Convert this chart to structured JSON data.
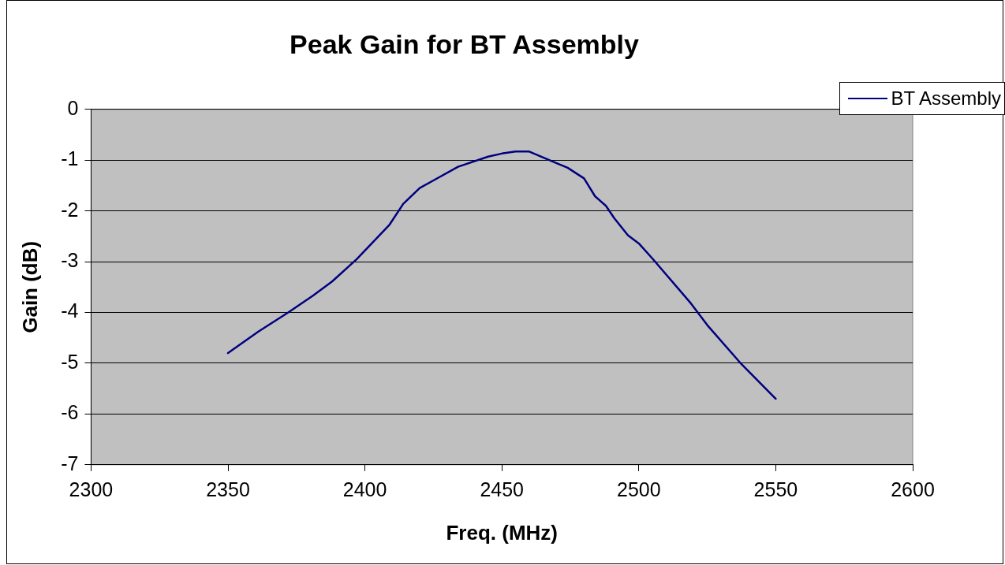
{
  "chart_data": {
    "type": "line",
    "title": "Peak Gain for BT Assembly",
    "xlabel": "Freq. (MHz)",
    "ylabel": "Gain (dB)",
    "xlim": [
      2300,
      2600
    ],
    "xticks": [
      2300,
      2350,
      2400,
      2450,
      2500,
      2550,
      2600
    ],
    "ylim": [
      -7,
      0
    ],
    "yticks": [
      -7,
      -6,
      -5,
      -4,
      -3,
      -2,
      -1,
      0
    ],
    "grid": "y",
    "legend": "top right",
    "marker": "none",
    "line_style": "solid",
    "series": [
      {
        "name": "BT Assembly",
        "color": "#000080",
        "x": [
          2350,
          2361,
          2372,
          2381,
          2388,
          2397,
          2409,
          2414,
          2420,
          2425,
          2434,
          2445,
          2450,
          2455,
          2460,
          2470,
          2474,
          2480,
          2484,
          2488,
          2491,
          2496,
          2500,
          2505,
          2519,
          2525,
          2537,
          2550
        ],
        "values": [
          -4.8,
          -4.38,
          -4.0,
          -3.67,
          -3.39,
          -2.95,
          -2.27,
          -1.86,
          -1.55,
          -1.4,
          -1.13,
          -0.93,
          -0.87,
          -0.83,
          -0.83,
          -1.06,
          -1.15,
          -1.36,
          -1.71,
          -1.9,
          -2.14,
          -2.48,
          -2.64,
          -2.94,
          -3.82,
          -4.25,
          -4.99,
          -5.7
        ]
      }
    ]
  }
}
